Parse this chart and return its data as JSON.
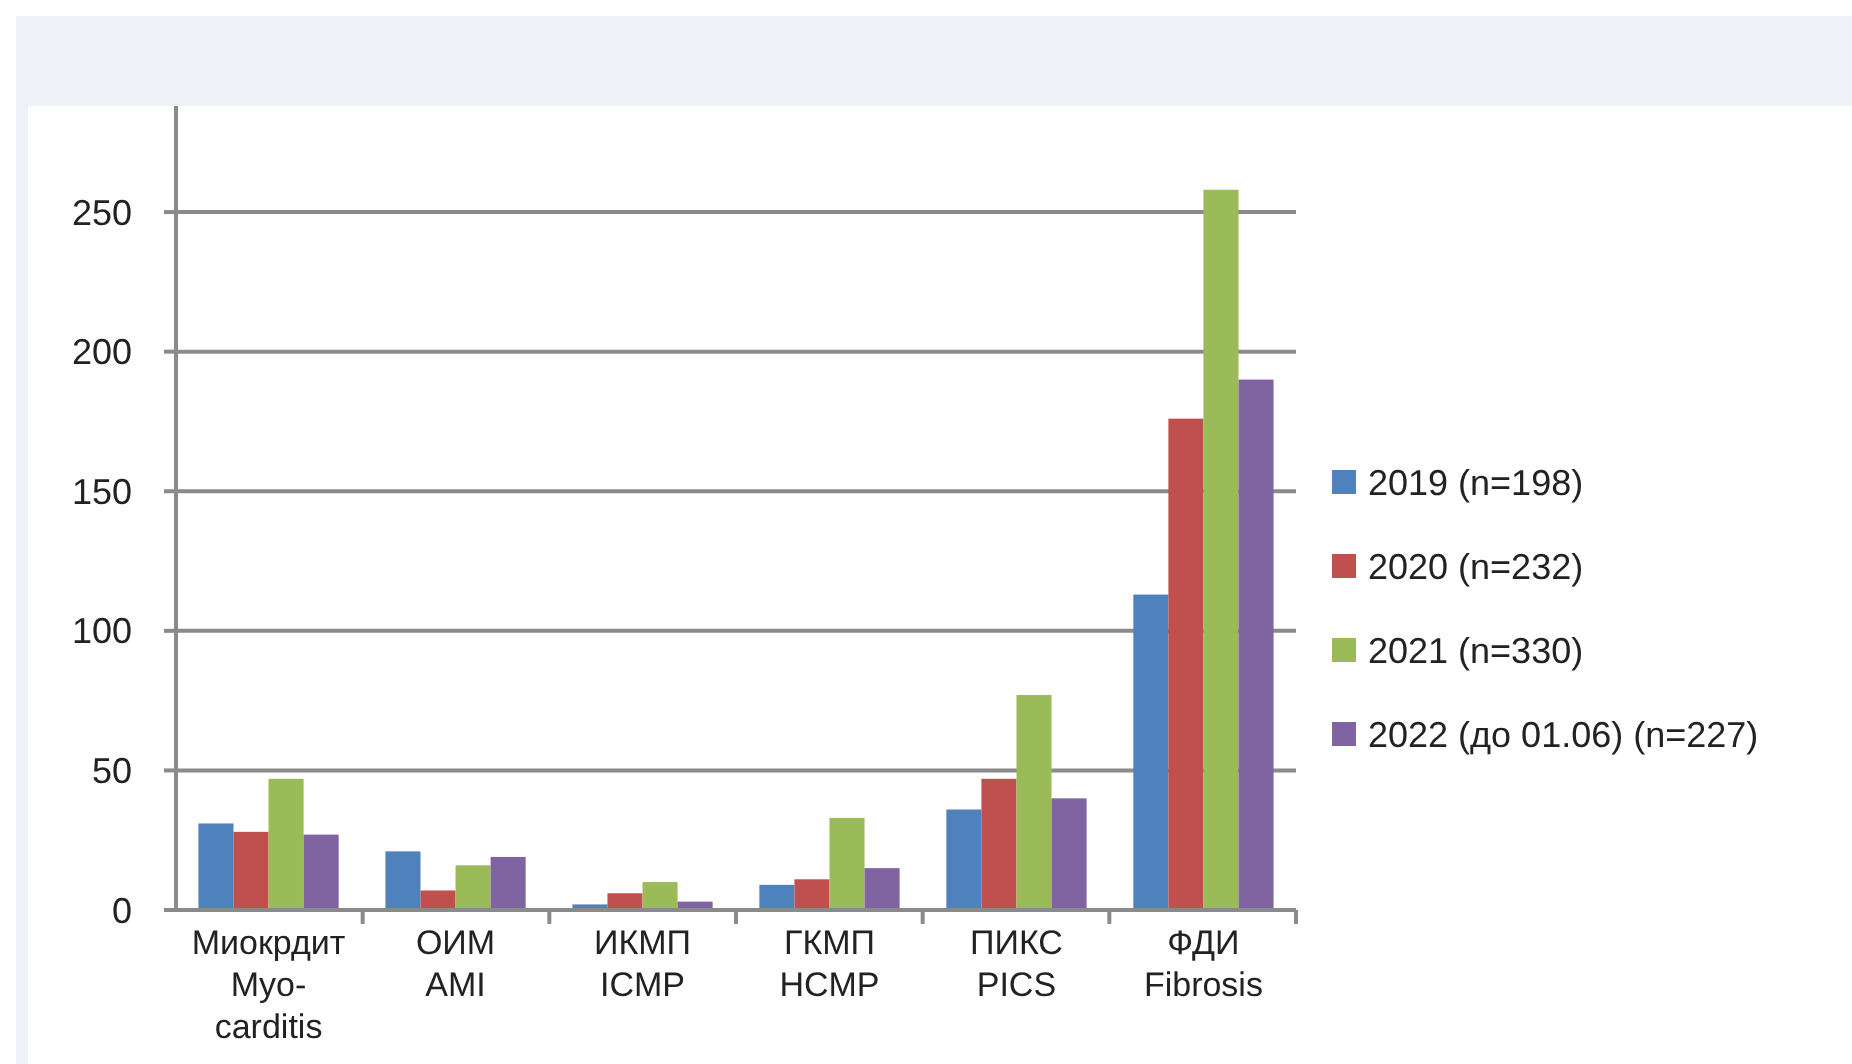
{
  "chart_data": {
    "type": "bar",
    "categories": [
      "Миокрдит\nMyo-\ncarditis",
      "ОИМ\nAMI",
      "ИКМП\nICMP",
      "ГКМП\nHCMP",
      "ПИКС\nPICS",
      "ФДИ\nFibrosis"
    ],
    "series": [
      {
        "name": "2019 (n=198)",
        "color": "#4f81bd",
        "values": [
          31,
          21,
          2,
          9,
          36,
          113
        ]
      },
      {
        "name": "2020 (n=232)",
        "color": "#c0504d",
        "values": [
          28,
          7,
          6,
          11,
          47,
          176
        ]
      },
      {
        "name": "2021 (n=330)",
        "color": "#9bbb59",
        "values": [
          47,
          16,
          10,
          33,
          77,
          258
        ]
      },
      {
        "name": "2022 (до 01.06) (n=227)",
        "color": "#8064a2",
        "values": [
          27,
          19,
          3,
          15,
          40,
          190
        ]
      }
    ],
    "ylim": [
      0,
      288
    ],
    "yticks": [
      0,
      50,
      100,
      150,
      200,
      250
    ],
    "grid": "y",
    "legend": "right"
  }
}
